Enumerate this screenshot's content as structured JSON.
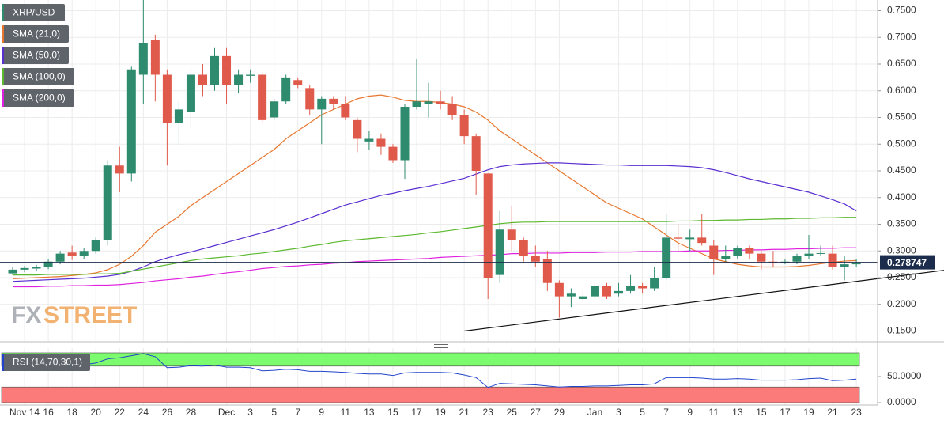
{
  "chart_data": {
    "type": "candlestick",
    "symbol": "XRP/USD",
    "watermark": [
      "FX",
      "STREET"
    ],
    "categories": [
      null,
      "Nov 14",
      null,
      "16",
      null,
      "18",
      null,
      "20",
      null,
      "22",
      null,
      "24",
      null,
      "26",
      null,
      "28",
      null,
      null,
      "Dec",
      null,
      "3",
      null,
      "5",
      null,
      "7",
      null,
      "9",
      null,
      "11",
      null,
      "13",
      null,
      "15",
      null,
      "17",
      null,
      "19",
      null,
      "21",
      null,
      "23",
      null,
      "25",
      null,
      "27",
      null,
      "29",
      null,
      null,
      "Jan",
      null,
      "3",
      null,
      "5",
      null,
      "7",
      null,
      "9",
      null,
      "11",
      null,
      "13",
      null,
      "15",
      null,
      "17",
      null,
      "19",
      null,
      "21",
      null,
      "23"
    ],
    "open": [
      0.258,
      0.265,
      0.267,
      0.27,
      0.28,
      0.297,
      0.29,
      0.3,
      0.32,
      0.46,
      0.445,
      0.63,
      0.695,
      0.63,
      0.54,
      0.56,
      0.63,
      0.61,
      0.665,
      0.61,
      0.628,
      0.63,
      0.55,
      0.58,
      0.62,
      0.605,
      0.565,
      0.585,
      0.575,
      0.545,
      0.505,
      0.51,
      0.495,
      0.47,
      0.57,
      0.575,
      0.58,
      0.575,
      0.555,
      0.515,
      0.445,
      0.255,
      0.34,
      0.32,
      0.29,
      0.285,
      0.24,
      0.215,
      0.21,
      0.215,
      0.235,
      0.22,
      0.225,
      0.235,
      0.23,
      0.25,
      0.325,
      0.322,
      0.325,
      0.31,
      0.285,
      0.29,
      0.305,
      0.295,
      0.28,
      0.278,
      0.28,
      0.29,
      0.295,
      0.295,
      0.27,
      0.275
    ],
    "high": [
      0.27,
      0.272,
      0.274,
      0.285,
      0.3,
      0.31,
      0.305,
      0.325,
      0.47,
      0.495,
      0.645,
      0.78,
      0.705,
      0.64,
      0.58,
      0.64,
      0.65,
      0.68,
      0.68,
      0.64,
      0.64,
      0.635,
      0.585,
      0.63,
      0.625,
      0.61,
      0.59,
      0.59,
      0.59,
      0.55,
      0.525,
      0.52,
      0.5,
      0.575,
      0.66,
      0.615,
      0.6,
      0.59,
      0.565,
      0.52,
      0.445,
      0.375,
      0.385,
      0.325,
      0.31,
      0.3,
      0.245,
      0.23,
      0.225,
      0.24,
      0.24,
      0.24,
      0.255,
      0.24,
      0.27,
      0.37,
      0.35,
      0.34,
      0.37,
      0.32,
      0.31,
      0.31,
      0.31,
      0.3,
      0.3,
      0.285,
      0.295,
      0.33,
      0.31,
      0.31,
      0.29,
      0.285
    ],
    "low": [
      0.255,
      0.26,
      0.262,
      0.266,
      0.275,
      0.283,
      0.285,
      0.295,
      0.31,
      0.41,
      0.43,
      0.575,
      0.58,
      0.46,
      0.5,
      0.53,
      0.59,
      0.6,
      0.575,
      0.595,
      0.615,
      0.54,
      0.545,
      0.575,
      0.605,
      0.555,
      0.5,
      0.565,
      0.545,
      0.485,
      0.49,
      0.48,
      0.465,
      0.435,
      0.565,
      0.55,
      0.565,
      0.545,
      0.5,
      0.405,
      0.21,
      0.24,
      0.3,
      0.28,
      0.27,
      0.225,
      0.175,
      0.195,
      0.205,
      0.21,
      0.21,
      0.215,
      0.22,
      0.22,
      0.225,
      0.245,
      0.3,
      0.3,
      0.31,
      0.255,
      0.28,
      0.285,
      0.285,
      0.265,
      0.27,
      0.275,
      0.275,
      0.285,
      0.29,
      0.265,
      0.245,
      0.27
    ],
    "close": [
      0.265,
      0.268,
      0.27,
      0.28,
      0.295,
      0.29,
      0.3,
      0.32,
      0.46,
      0.445,
      0.64,
      0.69,
      0.63,
      0.54,
      0.565,
      0.63,
      0.61,
      0.665,
      0.61,
      0.63,
      0.63,
      0.545,
      0.58,
      0.625,
      0.61,
      0.565,
      0.585,
      0.575,
      0.55,
      0.51,
      0.51,
      0.495,
      0.47,
      0.57,
      0.58,
      0.58,
      0.575,
      0.555,
      0.515,
      0.45,
      0.25,
      0.34,
      0.32,
      0.29,
      0.28,
      0.24,
      0.215,
      0.22,
      0.215,
      0.235,
      0.215,
      0.225,
      0.235,
      0.23,
      0.25,
      0.325,
      0.323,
      0.325,
      0.315,
      0.285,
      0.29,
      0.305,
      0.295,
      0.28,
      0.278,
      0.28,
      0.29,
      0.295,
      0.296,
      0.27,
      0.275,
      0.278747
    ],
    "up_color": "#2e8b6e",
    "down_color": "#e05a4c",
    "series": [
      {
        "name": "SMA (21,0)",
        "color": "#e8772e",
        "values": [
          0.248,
          0.249,
          0.25,
          0.251,
          0.252,
          0.254,
          0.256,
          0.259,
          0.265,
          0.275,
          0.29,
          0.31,
          0.335,
          0.35,
          0.365,
          0.385,
          0.4,
          0.415,
          0.43,
          0.445,
          0.46,
          0.475,
          0.49,
          0.51,
          0.525,
          0.54,
          0.555,
          0.565,
          0.575,
          0.585,
          0.59,
          0.592,
          0.588,
          0.582,
          0.58,
          0.58,
          0.578,
          0.575,
          0.57,
          0.56,
          0.545,
          0.525,
          0.51,
          0.495,
          0.48,
          0.465,
          0.45,
          0.435,
          0.42,
          0.405,
          0.39,
          0.38,
          0.37,
          0.36,
          0.345,
          0.33,
          0.315,
          0.305,
          0.295,
          0.285,
          0.28,
          0.275,
          0.272,
          0.27,
          0.27,
          0.27,
          0.271,
          0.273,
          0.276,
          0.279,
          0.281,
          0.282
        ]
      },
      {
        "name": "SMA (50,0)",
        "color": "#5a2fd0",
        "values": [
          0.243,
          0.244,
          0.245,
          0.246,
          0.247,
          0.248,
          0.249,
          0.251,
          0.253,
          0.256,
          0.262,
          0.27,
          0.28,
          0.287,
          0.293,
          0.298,
          0.304,
          0.31,
          0.316,
          0.322,
          0.328,
          0.334,
          0.34,
          0.347,
          0.354,
          0.362,
          0.37,
          0.378,
          0.386,
          0.392,
          0.398,
          0.404,
          0.408,
          0.413,
          0.417,
          0.421,
          0.426,
          0.431,
          0.436,
          0.444,
          0.452,
          0.458,
          0.461,
          0.463,
          0.464,
          0.465,
          0.465,
          0.464,
          0.463,
          0.462,
          0.461,
          0.461,
          0.46,
          0.46,
          0.46,
          0.46,
          0.459,
          0.458,
          0.456,
          0.452,
          0.447,
          0.441,
          0.435,
          0.43,
          0.425,
          0.42,
          0.415,
          0.41,
          0.403,
          0.396,
          0.388,
          0.375
        ]
      },
      {
        "name": "SMA (100,0)",
        "color": "#5cb82e",
        "values": [
          0.255,
          0.255,
          0.255,
          0.256,
          0.256,
          0.256,
          0.256,
          0.257,
          0.257,
          0.258,
          0.262,
          0.266,
          0.27,
          0.274,
          0.278,
          0.282,
          0.285,
          0.287,
          0.289,
          0.291,
          0.294,
          0.296,
          0.299,
          0.302,
          0.305,
          0.309,
          0.312,
          0.316,
          0.319,
          0.321,
          0.323,
          0.325,
          0.327,
          0.329,
          0.331,
          0.334,
          0.336,
          0.339,
          0.342,
          0.345,
          0.348,
          0.351,
          0.353,
          0.354,
          0.354,
          0.355,
          0.355,
          0.355,
          0.355,
          0.355,
          0.355,
          0.355,
          0.355,
          0.355,
          0.355,
          0.355,
          0.356,
          0.356,
          0.357,
          0.357,
          0.358,
          0.358,
          0.359,
          0.359,
          0.36,
          0.36,
          0.361,
          0.361,
          0.362,
          0.362,
          0.363,
          0.363
        ]
      },
      {
        "name": "SMA (200,0)",
        "color": "#e020e0",
        "values": [
          0.233,
          0.233,
          0.233,
          0.234,
          0.234,
          0.235,
          0.235,
          0.236,
          0.236,
          0.237,
          0.239,
          0.241,
          0.244,
          0.246,
          0.248,
          0.251,
          0.253,
          0.256,
          0.259,
          0.261,
          0.264,
          0.267,
          0.269,
          0.271,
          0.272,
          0.274,
          0.275,
          0.277,
          0.278,
          0.28,
          0.281,
          0.282,
          0.283,
          0.284,
          0.285,
          0.286,
          0.288,
          0.289,
          0.29,
          0.291,
          0.292,
          0.293,
          0.295,
          0.295,
          0.296,
          0.296,
          0.296,
          0.297,
          0.297,
          0.297,
          0.298,
          0.298,
          0.298,
          0.299,
          0.299,
          0.299,
          0.299,
          0.3,
          0.3,
          0.3,
          0.301,
          0.301,
          0.302,
          0.302,
          0.303,
          0.303,
          0.304,
          0.304,
          0.305,
          0.305,
          0.306,
          0.306
        ]
      }
    ],
    "trendline": {
      "color": "#111111",
      "points": [
        [
          38,
          0.15
        ],
        [
          71,
          0.243
        ]
      ]
    },
    "last_price": 0.278747,
    "ylim": [
      0.13,
      0.77
    ],
    "yticks": [
      {
        "value": 0.15,
        "label": "0.1500"
      },
      {
        "value": 0.2,
        "label": "0.2000"
      },
      {
        "value": 0.25,
        "label": "0.2500"
      },
      {
        "value": 0.3,
        "label": "0.3000"
      },
      {
        "value": 0.35,
        "label": "0.3500"
      },
      {
        "value": 0.4,
        "label": "0.4000"
      },
      {
        "value": 0.45,
        "label": "0.4500"
      },
      {
        "value": 0.5,
        "label": "0.5000"
      },
      {
        "value": 0.55,
        "label": "0.5500"
      },
      {
        "value": 0.6,
        "label": "0.6000"
      },
      {
        "value": 0.65,
        "label": "0.6500"
      },
      {
        "value": 0.7,
        "label": "0.7000"
      },
      {
        "value": 0.75,
        "label": "0.7500"
      }
    ],
    "grid": true,
    "rsi": {
      "name": "RSI (14,70,30,1)",
      "color": "#2244cc",
      "values": [
        67,
        66,
        67,
        70,
        72,
        72,
        73,
        76,
        84,
        86,
        90,
        94,
        88,
        67,
        68,
        71,
        70,
        72,
        68,
        68,
        67,
        61,
        62,
        64,
        63,
        60,
        60,
        59,
        58,
        56,
        55,
        55,
        52,
        57,
        58,
        58,
        58,
        57,
        53,
        48,
        29,
        37,
        36,
        35,
        34,
        32,
        30,
        31,
        31,
        32,
        32,
        33,
        34,
        34,
        36,
        48,
        48,
        48,
        47,
        45,
        45,
        46,
        45,
        43,
        43,
        43,
        44,
        46,
        47,
        42,
        43,
        45
      ],
      "ylim": [
        0,
        100
      ],
      "yticks": [
        {
          "value": 0,
          "label": "0.0000"
        },
        {
          "value": 50,
          "label": "50.0000"
        }
      ],
      "overbought": [
        70,
        100
      ],
      "overbought_color": "#7dfb6e",
      "oversold": [
        0,
        30
      ],
      "oversold_color": "#fb7a7a"
    }
  }
}
